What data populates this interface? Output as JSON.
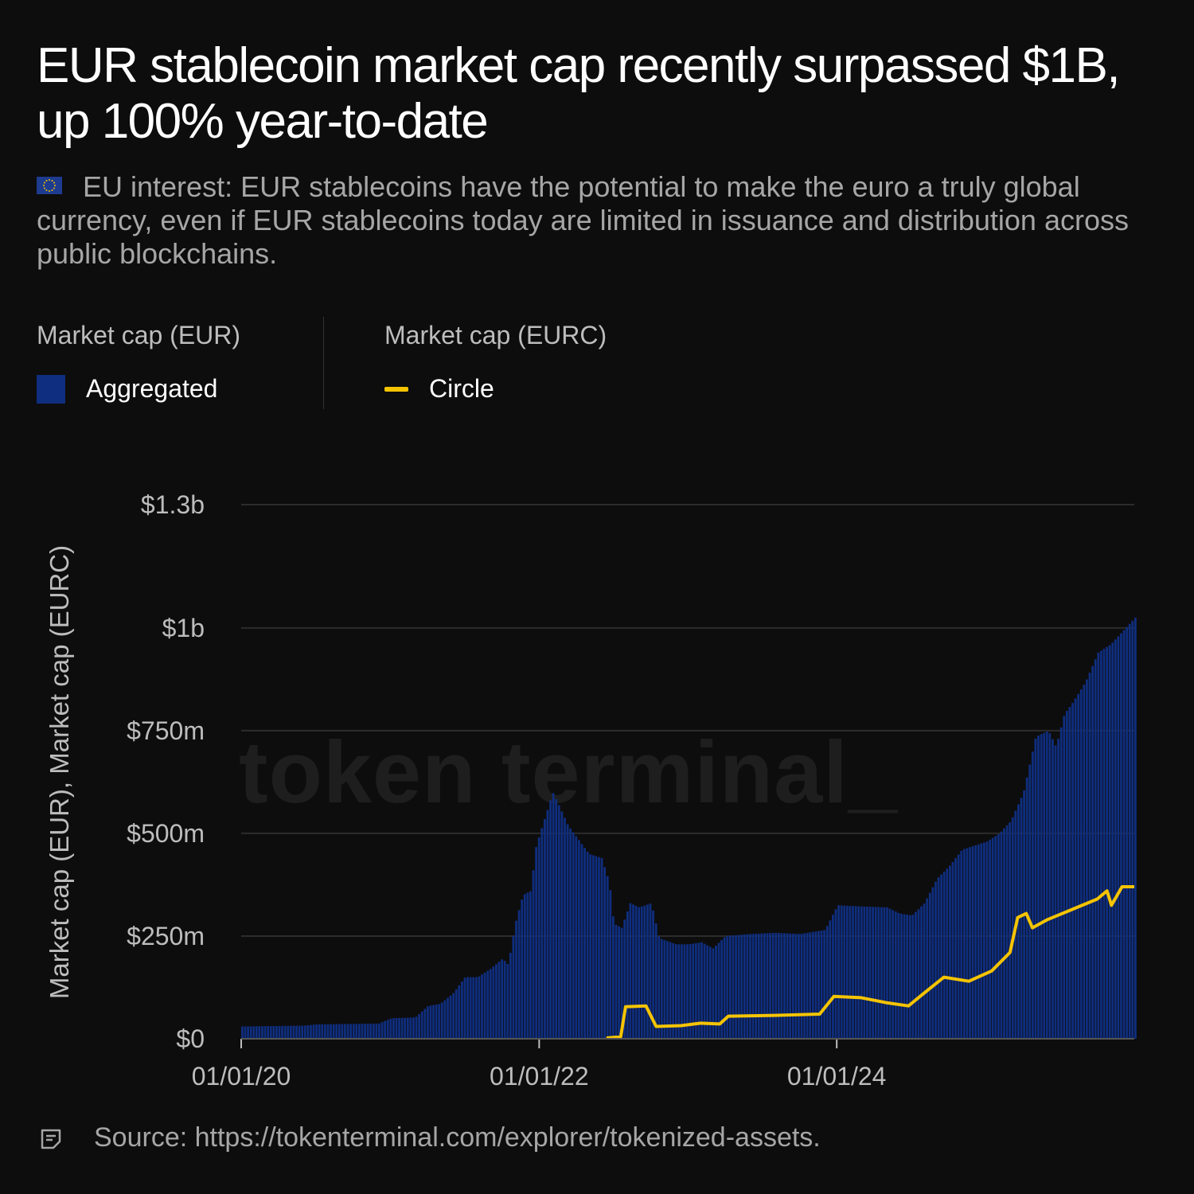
{
  "title": "EUR stablecoin market cap recently surpassed $1B, up 100% year-to-date",
  "subtitle": "EU interest: EUR stablecoins have the potential to make the euro a truly global currency, even if EUR stablecoins today are limited in issuance and distribution across public blockchains.",
  "legend": {
    "group1_title": "Market cap (EUR)",
    "group1_item": "Aggregated",
    "group2_title": "Market cap (EURC)",
    "group2_item": "Circle"
  },
  "watermark": "token terminal_",
  "source": "Source: https://tokenterminal.com/explorer/tokenized-assets.",
  "colors": {
    "background": "#0d0d0d",
    "aggregated": "#0f2e7f",
    "circle": "#f5c400",
    "grid": "#2c2c2c"
  },
  "chart_data": {
    "type": "area",
    "ylabel": "Market cap (EUR), Market cap (EURC)",
    "ylim": [
      0,
      1300000000
    ],
    "yticks": [
      {
        "value": 0,
        "label": "$0"
      },
      {
        "value": 250000000,
        "label": "$250m"
      },
      {
        "value": 500000000,
        "label": "$500m"
      },
      {
        "value": 750000000,
        "label": "$750m"
      },
      {
        "value": 1000000000,
        "label": "$1b"
      },
      {
        "value": 1300000000,
        "label": "$1.3b"
      }
    ],
    "xlim": [
      "2020-01-01",
      "2025-12-31"
    ],
    "xticks": [
      {
        "value": "2020-01-01",
        "label": "01/01/20"
      },
      {
        "value": "2022-01-01",
        "label": "01/01/22"
      },
      {
        "value": "2024-01-01",
        "label": "01/01/24"
      }
    ],
    "grid": true,
    "series": [
      {
        "name": "Aggregated",
        "style": "bars",
        "points": [
          [
            "2020-01-01",
            30000000
          ],
          [
            "2020-06-01",
            32000000
          ],
          [
            "2020-07-01",
            35000000
          ],
          [
            "2020-12-01",
            37000000
          ],
          [
            "2021-01-01",
            50000000
          ],
          [
            "2021-03-01",
            52000000
          ],
          [
            "2021-04-01",
            80000000
          ],
          [
            "2021-05-01",
            85000000
          ],
          [
            "2021-06-01",
            110000000
          ],
          [
            "2021-07-01",
            150000000
          ],
          [
            "2021-08-01",
            150000000
          ],
          [
            "2021-09-01",
            170000000
          ],
          [
            "2021-10-01",
            195000000
          ],
          [
            "2021-10-15",
            180000000
          ],
          [
            "2021-11-01",
            280000000
          ],
          [
            "2021-11-20",
            350000000
          ],
          [
            "2021-12-10",
            360000000
          ],
          [
            "2021-12-20",
            460000000
          ],
          [
            "2022-01-01",
            500000000
          ],
          [
            "2022-01-20",
            560000000
          ],
          [
            "2022-02-01",
            600000000
          ],
          [
            "2022-02-20",
            560000000
          ],
          [
            "2022-03-10",
            520000000
          ],
          [
            "2022-04-01",
            490000000
          ],
          [
            "2022-05-01",
            450000000
          ],
          [
            "2022-06-01",
            440000000
          ],
          [
            "2022-06-20",
            380000000
          ],
          [
            "2022-07-01",
            280000000
          ],
          [
            "2022-07-20",
            270000000
          ],
          [
            "2022-08-10",
            330000000
          ],
          [
            "2022-09-01",
            320000000
          ],
          [
            "2022-10-01",
            330000000
          ],
          [
            "2022-10-20",
            245000000
          ],
          [
            "2022-12-01",
            230000000
          ],
          [
            "2023-01-01",
            230000000
          ],
          [
            "2023-02-01",
            235000000
          ],
          [
            "2023-03-01",
            220000000
          ],
          [
            "2023-04-01",
            250000000
          ],
          [
            "2023-06-01",
            255000000
          ],
          [
            "2023-08-01",
            258000000
          ],
          [
            "2023-10-01",
            255000000
          ],
          [
            "2023-12-01",
            265000000
          ],
          [
            "2024-01-01",
            325000000
          ],
          [
            "2024-03-01",
            322000000
          ],
          [
            "2024-05-01",
            320000000
          ],
          [
            "2024-06-01",
            305000000
          ],
          [
            "2024-07-01",
            300000000
          ],
          [
            "2024-08-01",
            330000000
          ],
          [
            "2024-09-01",
            390000000
          ],
          [
            "2024-10-01",
            420000000
          ],
          [
            "2024-11-01",
            460000000
          ],
          [
            "2024-12-01",
            470000000
          ],
          [
            "2025-01-01",
            480000000
          ],
          [
            "2025-02-01",
            500000000
          ],
          [
            "2025-03-01",
            530000000
          ],
          [
            "2025-04-01",
            600000000
          ],
          [
            "2025-05-01",
            735000000
          ],
          [
            "2025-06-01",
            750000000
          ],
          [
            "2025-06-20",
            710000000
          ],
          [
            "2025-07-10",
            790000000
          ],
          [
            "2025-08-01",
            820000000
          ],
          [
            "2025-09-01",
            870000000
          ],
          [
            "2025-10-01",
            940000000
          ],
          [
            "2025-11-01",
            960000000
          ],
          [
            "2025-12-31",
            1025000000
          ]
        ]
      },
      {
        "name": "Circle",
        "style": "line",
        "points": [
          [
            "2022-06-15",
            2000000
          ],
          [
            "2022-07-20",
            5000000
          ],
          [
            "2022-08-01",
            78000000
          ],
          [
            "2022-09-20",
            80000000
          ],
          [
            "2022-10-15",
            30000000
          ],
          [
            "2022-12-15",
            32000000
          ],
          [
            "2023-02-01",
            38000000
          ],
          [
            "2023-03-20",
            36000000
          ],
          [
            "2023-04-10",
            55000000
          ],
          [
            "2023-08-01",
            57000000
          ],
          [
            "2023-11-20",
            60000000
          ],
          [
            "2023-12-25",
            103000000
          ],
          [
            "2024-03-01",
            100000000
          ],
          [
            "2024-05-01",
            88000000
          ],
          [
            "2024-06-25",
            80000000
          ],
          [
            "2024-08-01",
            110000000
          ],
          [
            "2024-09-20",
            150000000
          ],
          [
            "2024-11-20",
            140000000
          ],
          [
            "2025-01-15",
            165000000
          ],
          [
            "2025-03-01",
            210000000
          ],
          [
            "2025-03-20",
            295000000
          ],
          [
            "2025-04-10",
            305000000
          ],
          [
            "2025-04-25",
            270000000
          ],
          [
            "2025-06-01",
            290000000
          ],
          [
            "2025-08-01",
            315000000
          ],
          [
            "2025-10-01",
            340000000
          ],
          [
            "2025-10-25",
            360000000
          ],
          [
            "2025-11-05",
            325000000
          ],
          [
            "2025-12-01",
            370000000
          ],
          [
            "2025-12-31",
            370000000
          ]
        ]
      }
    ]
  }
}
